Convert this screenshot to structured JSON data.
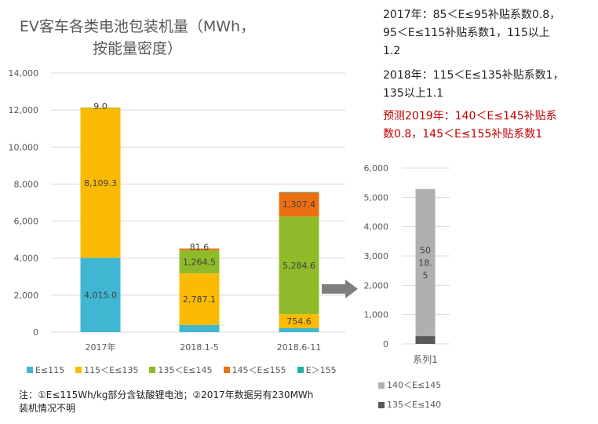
{
  "title": "EV客车各类电池包装机量（MWh，按能量密度）",
  "title_lines": [
    "EV客车各类电池包装机量（MWh，",
    "按能量密度）"
  ],
  "notes": {
    "n2017": [
      "2017年：85＜E≤95补贴系数0.8，",
      "95＜E≤115补贴系数1，115以上",
      "1.2"
    ],
    "n2018": [
      "2018年：115＜E≤135补贴系数1，",
      "135以上1.1"
    ],
    "n2019": [
      "预测2019年：140＜E≤145补贴系",
      "数0.8，145＜E≤155补贴系数1"
    ],
    "n2019_color": "#c00000"
  },
  "footnote": [
    "注：①E≤115Wh/kg部分含钛酸锂电池；②2017年数据另有230MWh",
    "装机情况不明"
  ],
  "chart_data": [
    {
      "type": "bar",
      "stacked": true,
      "categories": [
        "2017年",
        "2018.1-5",
        "2018.6-11"
      ],
      "ylim": [
        0,
        14000
      ],
      "yticks": [
        0,
        2000,
        4000,
        6000,
        8000,
        10000,
        12000,
        14000
      ],
      "ytick_labels": [
        "0",
        "2,000",
        "4,000",
        "6,000",
        "8,000",
        "10,000",
        "12,000",
        "14,000"
      ],
      "grid": true,
      "legend_position": "bottom",
      "series": [
        {
          "name": "E≤115",
          "color": "#3fb7d3",
          "values": [
            4015.0,
            383,
            213
          ],
          "labels": [
            "4,015.0",
            "",
            ""
          ]
        },
        {
          "name": "115＜E≤135",
          "color": "#fbbb04",
          "values": [
            8109.3,
            2787.1,
            754.6
          ],
          "labels": [
            "8,109.3",
            "2,787.1",
            "754.6"
          ]
        },
        {
          "name": "135＜E≤145",
          "color": "#8fbb2a",
          "values": [
            9.0,
            1264.5,
            5284.6
          ],
          "labels": [
            "9.0",
            "1,264.5",
            "5,284.6"
          ]
        },
        {
          "name": "145＜E≤155",
          "color": "#ec6f13",
          "values": [
            0,
            81.6,
            1307.4
          ],
          "labels": [
            "",
            "81.6",
            "1,307.4"
          ]
        },
        {
          "name": "E＞155",
          "color": "#20b2a0",
          "values": [
            0,
            0,
            15
          ],
          "labels": [
            "",
            "",
            ""
          ]
        }
      ]
    },
    {
      "type": "bar",
      "stacked": true,
      "categories": [
        "系列1"
      ],
      "ylim": [
        0,
        6000
      ],
      "yticks": [
        0,
        1000,
        2000,
        3000,
        4000,
        5000,
        6000
      ],
      "ytick_labels": [
        "0",
        "1,000",
        "2,000",
        "3,000",
        "4,000",
        "5,000",
        "6,000"
      ],
      "grid": true,
      "legend_position": "bottom",
      "series": [
        {
          "name": "135＜E≤140",
          "color": "#595959",
          "values": [
            266
          ]
        },
        {
          "name": "140＜E≤145",
          "color": "#b0b0b0",
          "values": [
            5018.5
          ],
          "label_lines": [
            "50",
            "18.",
            "5"
          ]
        }
      ]
    }
  ]
}
